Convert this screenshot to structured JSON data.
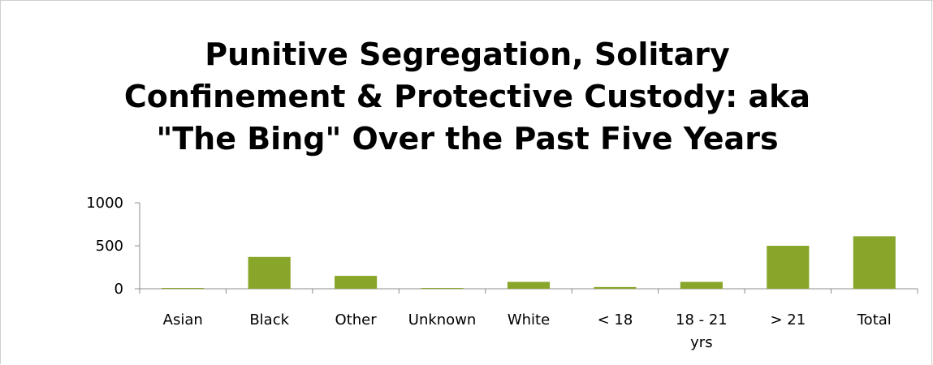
{
  "chart_data": {
    "type": "bar",
    "title_lines": [
      "Punitive  Segregation, Solitary",
      "Confinement & Protective Custody: aka",
      "\"The Bing\" Over the Past Five Years"
    ],
    "categories": [
      "Asian",
      "Black",
      "Other",
      "Unknown",
      "White",
      "< 18",
      "18 - 21 yrs",
      "> 21",
      "Total"
    ],
    "category_label_lines": [
      [
        "Asian"
      ],
      [
        "Black"
      ],
      [
        "Other"
      ],
      [
        "Unknown"
      ],
      [
        "White"
      ],
      [
        "< 18"
      ],
      [
        "18 - 21",
        "yrs"
      ],
      [
        "> 21"
      ],
      [
        "Total"
      ]
    ],
    "values": [
      2,
      370,
      150,
      2,
      80,
      20,
      80,
      500,
      610
    ],
    "ylim": [
      0,
      1000
    ],
    "yticks": [
      0,
      500,
      1000
    ],
    "xlabel": "",
    "ylabel": "",
    "grid": false,
    "legend": "none",
    "colors": {
      "bar": "#88a62a",
      "axis": "#8c8c8c"
    }
  }
}
